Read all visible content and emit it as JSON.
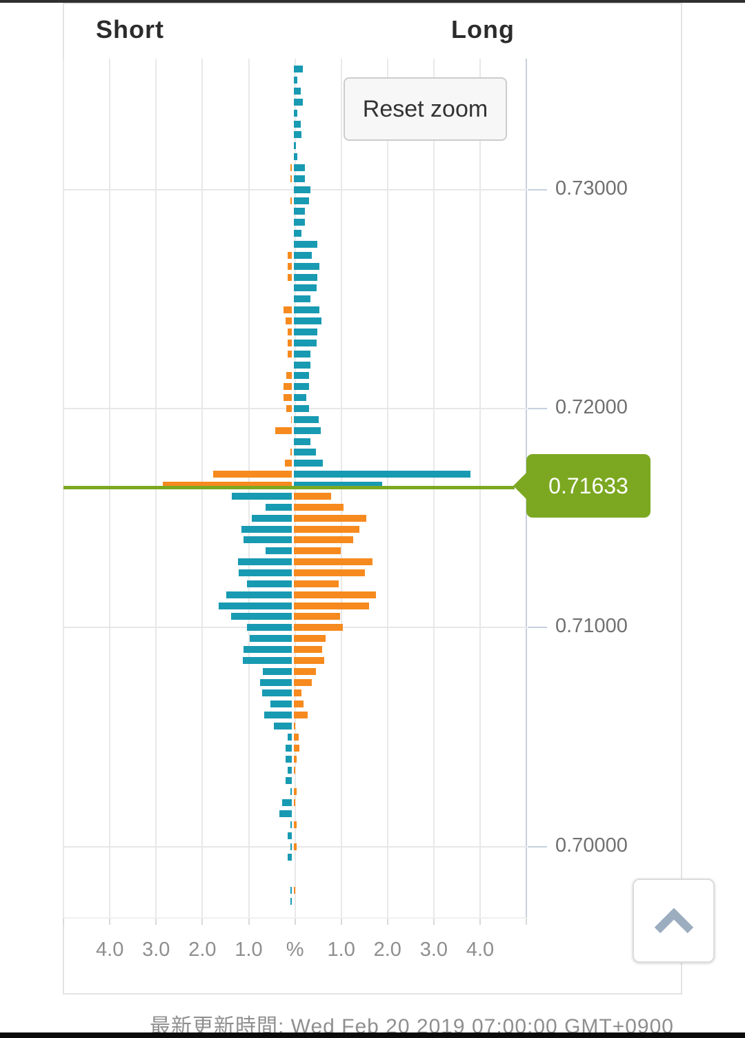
{
  "ui": {
    "reset_zoom_label": "Reset zoom",
    "scroll_top_icon": "chevron-up",
    "top_bar_color": "#2f2f2f",
    "bottom_bar_color": "#0b0b0b"
  },
  "footer": {
    "last_update": "最新更新時間: Wed Feb 20 2019 07:00:00 GMT+0900"
  },
  "chart_data": {
    "type": "bar",
    "variant": "horizontal-pyramid-open-positions",
    "series_labels": {
      "short": "Short",
      "long": "Long"
    },
    "current_price": "0.71633",
    "x_axis": {
      "unit": "%",
      "tick_labels": [
        "4.0",
        "3.0",
        "2.0",
        "1.0",
        "%",
        "1.0",
        "2.0",
        "3.0",
        "4.0"
      ],
      "max_percent": 5.0,
      "grid": true
    },
    "y_axis": {
      "tick_labels": [
        "0.73000",
        "0.72000",
        "0.71000",
        "0.70000"
      ],
      "position": "right",
      "price_step_per_row": 0.0005
    },
    "colors": {
      "teal": "#189ab2",
      "orange": "#f68a1e",
      "price_line": "#7ca821",
      "grid": "#e7e7e7",
      "axis": "#c6d0de",
      "y_tick_text": "#707070",
      "x_tick_text": "#8e8e8e"
    },
    "color_semantics": {
      "above_price": {
        "short": "orange",
        "long": "teal"
      },
      "below_price": {
        "short": "teal",
        "long": "orange"
      }
    },
    "rows_format": [
      "price",
      "short_pct",
      "long_pct"
    ],
    "rows": [
      [
        0.7355,
        0,
        0.2
      ],
      [
        0.735,
        0,
        0.08
      ],
      [
        0.7345,
        0,
        0.15
      ],
      [
        0.734,
        0,
        0.2
      ],
      [
        0.7335,
        0,
        0.08
      ],
      [
        0.733,
        0,
        0.15
      ],
      [
        0.7325,
        0,
        0.17
      ],
      [
        0.732,
        0,
        0.05
      ],
      [
        0.7315,
        0,
        0.08
      ],
      [
        0.731,
        0.04,
        0.25
      ],
      [
        0.7305,
        0.04,
        0.25
      ],
      [
        0.73,
        0,
        0.36
      ],
      [
        0.7295,
        0.04,
        0.33
      ],
      [
        0.729,
        0,
        0.24
      ],
      [
        0.7285,
        0,
        0.24
      ],
      [
        0.728,
        0,
        0.17
      ],
      [
        0.7275,
        0,
        0.52
      ],
      [
        0.727,
        0.1,
        0.39
      ],
      [
        0.7265,
        0.1,
        0.56
      ],
      [
        0.726,
        0.1,
        0.52
      ],
      [
        0.7255,
        0,
        0.5
      ],
      [
        0.725,
        0,
        0.37
      ],
      [
        0.7245,
        0.19,
        0.56
      ],
      [
        0.724,
        0.14,
        0.61
      ],
      [
        0.7235,
        0.1,
        0.52
      ],
      [
        0.723,
        0.1,
        0.5
      ],
      [
        0.7225,
        0.1,
        0.37
      ],
      [
        0.722,
        0,
        0.37
      ],
      [
        0.7215,
        0.13,
        0.33
      ],
      [
        0.721,
        0.19,
        0.33
      ],
      [
        0.7205,
        0.18,
        0.27
      ],
      [
        0.72,
        0.12,
        0.33
      ],
      [
        0.7195,
        0.02,
        0.55
      ],
      [
        0.719,
        0.37,
        0.59
      ],
      [
        0.7185,
        0,
        0.37
      ],
      [
        0.718,
        0.04,
        0.49
      ],
      [
        0.7175,
        0.15,
        0.63
      ],
      [
        0.717,
        1.7,
        3.83
      ],
      [
        0.7165,
        2.8,
        1.92
      ],
      [
        0.716,
        1.3,
        0.81
      ],
      [
        0.7155,
        0.57,
        1.08
      ],
      [
        0.715,
        0.87,
        1.57
      ],
      [
        0.7145,
        1.09,
        1.43
      ],
      [
        0.714,
        1.05,
        1.29
      ],
      [
        0.7135,
        0.57,
        1.02
      ],
      [
        0.713,
        1.17,
        1.7
      ],
      [
        0.7125,
        1.15,
        1.54
      ],
      [
        0.712,
        0.97,
        0.97
      ],
      [
        0.7115,
        1.42,
        1.78
      ],
      [
        0.711,
        1.59,
        1.63
      ],
      [
        0.7105,
        1.32,
        1.01
      ],
      [
        0.71,
        0.97,
        1.06
      ],
      [
        0.7095,
        0.91,
        0.7
      ],
      [
        0.709,
        1.05,
        0.62
      ],
      [
        0.7085,
        1.07,
        0.66
      ],
      [
        0.708,
        0.64,
        0.49
      ],
      [
        0.7075,
        0.7,
        0.4
      ],
      [
        0.707,
        0.65,
        0.17
      ],
      [
        0.7065,
        0.47,
        0.21
      ],
      [
        0.706,
        0.61,
        0.31
      ],
      [
        0.7055,
        0.39,
        0.04
      ],
      [
        0.705,
        0.09,
        0.11
      ],
      [
        0.7045,
        0.14,
        0.12
      ],
      [
        0.704,
        0.14,
        0.06
      ],
      [
        0.7035,
        0.09,
        0.03
      ],
      [
        0.703,
        0.14,
        0
      ],
      [
        0.7025,
        0.04,
        0.06
      ],
      [
        0.702,
        0.22,
        0.03
      ],
      [
        0.7015,
        0.27,
        0
      ],
      [
        0.701,
        0.04,
        0.06
      ],
      [
        0.7005,
        0.1,
        0
      ],
      [
        0.7,
        0.04,
        0.06
      ],
      [
        0.6995,
        0.1,
        0
      ],
      [
        0.699,
        0,
        0
      ],
      [
        0.6985,
        0,
        0
      ],
      [
        0.698,
        0.03,
        0.03
      ],
      [
        0.6975,
        0.03,
        0
      ]
    ]
  }
}
